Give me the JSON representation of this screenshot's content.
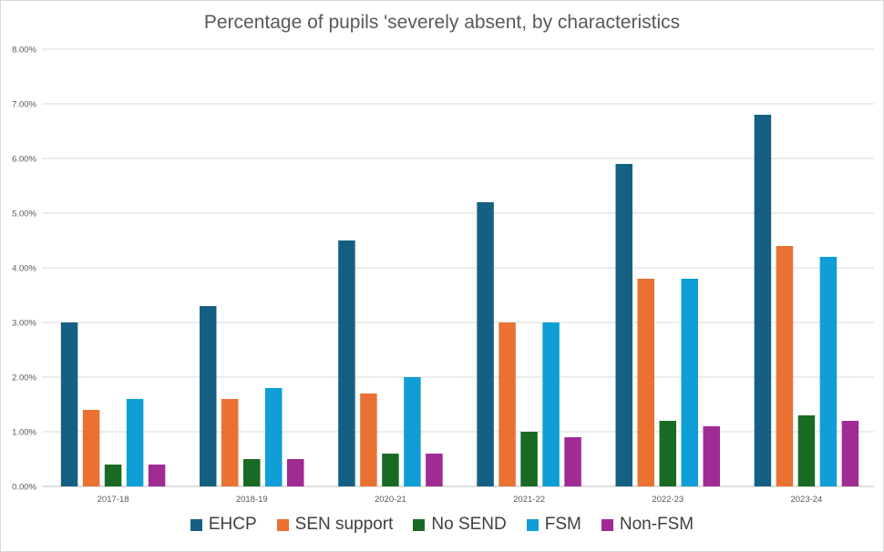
{
  "chart_data": {
    "type": "bar",
    "title": "Percentage of pupils 'severely absent, by characteristics",
    "xlabel": "",
    "ylabel": "",
    "ylim": [
      0,
      0.08
    ],
    "yticks": [
      "0.00%",
      "1.00%",
      "2.00%",
      "3.00%",
      "4.00%",
      "5.00%",
      "6.00%",
      "7.00%",
      "8.00%"
    ],
    "grid": true,
    "legend_position": "bottom",
    "categories": [
      "2017-18",
      "2018-19",
      "2020-21",
      "2021-22",
      "2022-23",
      "2023-24"
    ],
    "series": [
      {
        "name": "EHCP",
        "color": "#156082",
        "values": [
          0.03,
          0.033,
          0.045,
          0.052,
          0.059,
          0.068
        ]
      },
      {
        "name": "SEN support",
        "color": "#E97132",
        "values": [
          0.014,
          0.016,
          0.017,
          0.03,
          0.038,
          0.044
        ]
      },
      {
        "name": "No SEND",
        "color": "#196B24",
        "values": [
          0.004,
          0.005,
          0.006,
          0.01,
          0.012,
          0.013
        ]
      },
      {
        "name": "FSM",
        "color": "#0F9ED5",
        "values": [
          0.016,
          0.018,
          0.02,
          0.03,
          0.038,
          0.042
        ]
      },
      {
        "name": "Non-FSM",
        "color": "#A02B93",
        "values": [
          0.004,
          0.005,
          0.006,
          0.009,
          0.011,
          0.012
        ]
      }
    ]
  }
}
